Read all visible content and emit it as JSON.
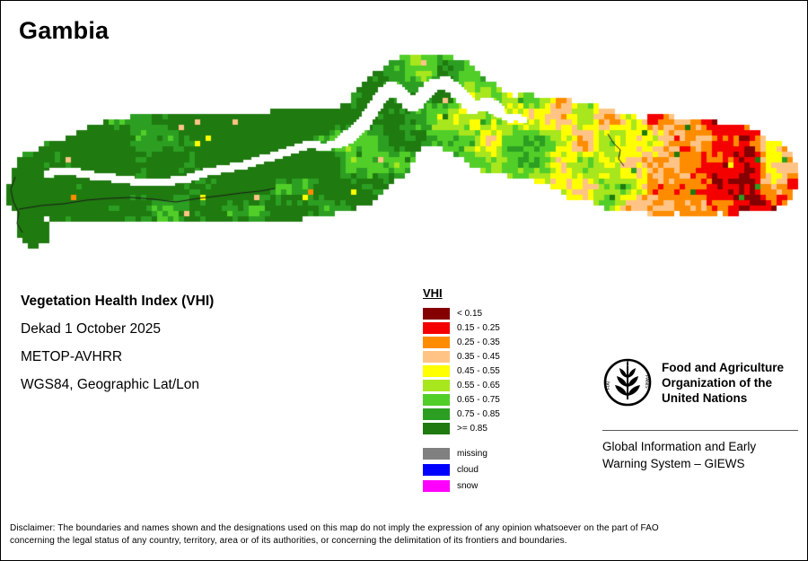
{
  "title": "Gambia",
  "info": {
    "heading": "Vegetation Health Index (VHI)",
    "dekad": "Dekad 1 October 2025",
    "sensor": "METOP-AVHRR",
    "projection": "WGS84, Geographic Lat/Lon"
  },
  "legend": {
    "title": "VHI",
    "classes": [
      {
        "label": "< 0.15",
        "color": "#850000"
      },
      {
        "label": "0.15 - 0.25",
        "color": "#F50000"
      },
      {
        "label": "0.25 - 0.35",
        "color": "#FF8C00"
      },
      {
        "label": "0.35 - 0.45",
        "color": "#FFC485"
      },
      {
        "label": "0.45 - 0.55",
        "color": "#FFFF00"
      },
      {
        "label": "0.55 - 0.65",
        "color": "#A8E61D"
      },
      {
        "label": "0.65 - 0.75",
        "color": "#52CE29"
      },
      {
        "label": "0.75 - 0.85",
        "color": "#2C9E22"
      },
      {
        "label": ">= 0.85",
        "color": "#1F7A0F"
      }
    ],
    "extra": [
      {
        "label": "missing",
        "color": "#808080"
      },
      {
        "label": "cloud",
        "color": "#0000FF"
      },
      {
        "label": "snow",
        "color": "#FF00FF"
      }
    ]
  },
  "fao": {
    "org_lines": [
      "Food and Agriculture",
      "Organization of the",
      "United Nations"
    ],
    "giews_lines": [
      "Global Information and Early",
      "Warning System – GIEWS"
    ]
  },
  "footer": {
    "disclaimer_lines": [
      "Disclaimer: The boundaries and names shown and the designations used on this map do not imply the expression of any opinion whatsoever on the part of FAO",
      "concerning the legal status of any country, territory, area or of its authorities, or concerning the delimitation of its frontiers and boundaries."
    ]
  }
}
